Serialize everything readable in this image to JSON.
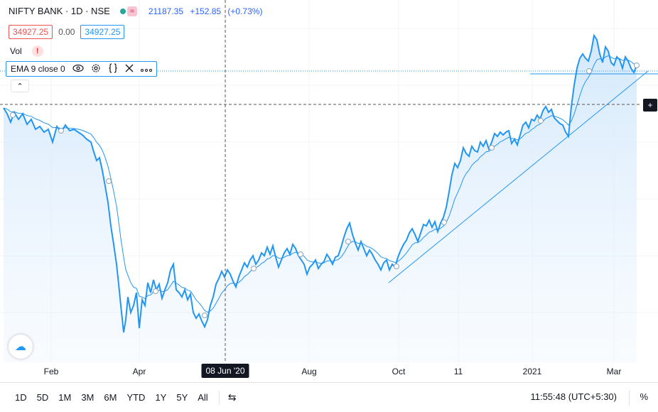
{
  "legend": {
    "symbol": "NIFTY BANK · 1D · NSE",
    "badge": "≈",
    "last": "21187.35",
    "change": "+152.85",
    "change_pct": "(+0.73%)"
  },
  "price_row": {
    "bid": "34927.25",
    "spread": "0.00",
    "ask": "34927.25"
  },
  "volume": {
    "label": "Vol",
    "warning": "!"
  },
  "indicator": {
    "label": "EMA 9 close 0",
    "icons": [
      "eye-icon",
      "gear-icon",
      "braces-icon",
      "close-icon",
      "more-icon"
    ]
  },
  "collapse_glyph": "⌃",
  "plus_glyph": "+",
  "logo_glyph": "☁",
  "x_axis": {
    "labels": [
      "Feb",
      "Apr",
      "Aug",
      "Oct",
      "11",
      "2021",
      "Mar"
    ],
    "crosshair_label": "08 Jun '20"
  },
  "bottom": {
    "ranges": [
      "1D",
      "5D",
      "1M",
      "3M",
      "6M",
      "YTD",
      "1Y",
      "5Y",
      "All"
    ],
    "calendar_glyph": "⇆",
    "time": "11:55:48 (UTC+5:30)",
    "percent": "%"
  },
  "colors": {
    "line": "#2196f3",
    "area": "#e3f0fd",
    "ema": "#2196f3"
  }
}
